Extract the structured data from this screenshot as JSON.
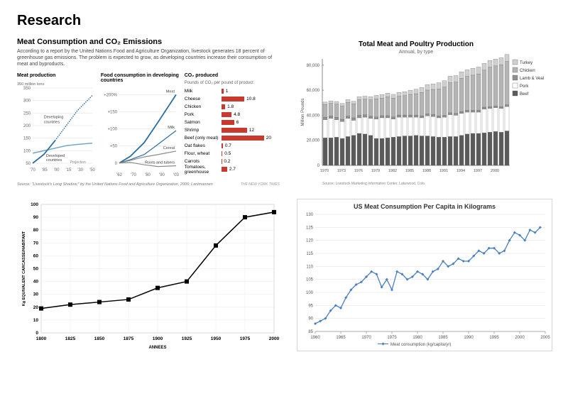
{
  "page_title": "Research",
  "nyt": {
    "title": "Meat Consumption and CO₂ Emissions",
    "sub": "According to a report by the United Nations Food and Agriculture Organization, livestock generates 18 percent of greenhouse gas emissions. The problem is expected to grow, as developing countries increase their consumption of meat and byproducts.",
    "source": "Source: \"Livestock's Long Shadow,\" by the United Nations Food and Agriculture Organization, 2006; Lantmannen",
    "brand": "THE NEW YORK TIMES",
    "col1": {
      "title": "Meat production",
      "ylabel": "350 million tons",
      "yticks": [
        50,
        100,
        150,
        200,
        250,
        300,
        350
      ],
      "xticks": [
        "'70",
        "'85",
        "'00",
        "'15",
        "'30",
        "'50"
      ],
      "series": {
        "developed": {
          "label": "Developed countries",
          "color": "#6fa7c9",
          "points": [
            [
              1970,
              90
            ],
            [
              1985,
              100
            ],
            [
              2000,
              110
            ],
            [
              2015,
              120
            ],
            [
              2030,
              125
            ],
            [
              2050,
              130
            ]
          ]
        },
        "developing": {
          "label": "Developing countries",
          "color": "#2b6ea3",
          "points": [
            [
              1970,
              50
            ],
            [
              1985,
              85
            ],
            [
              2000,
              140
            ],
            [
              2015,
              200
            ],
            [
              2030,
              260
            ],
            [
              2050,
              320
            ]
          ],
          "dotted_from": 2005
        }
      },
      "note": "Projection"
    },
    "col2": {
      "title": "Food consumption in developing countries",
      "yticks": [
        0,
        50,
        100,
        150,
        200
      ],
      "yprefix": "+",
      "ysuffix": "%",
      "xticks": [
        "'62",
        "'70",
        "'80",
        "'90",
        "'03"
      ],
      "series": {
        "meat": {
          "label": "Meat",
          "color": "#2b6ea3",
          "points": [
            [
              1962,
              0
            ],
            [
              1970,
              20
            ],
            [
              1980,
              60
            ],
            [
              1990,
              120
            ],
            [
              2003,
              200
            ]
          ]
        },
        "milk": {
          "label": "Milk",
          "color": "#2b6ea3",
          "points": [
            [
              1962,
              0
            ],
            [
              1970,
              10
            ],
            [
              1980,
              25
            ],
            [
              1990,
              55
            ],
            [
              2003,
              95
            ]
          ]
        },
        "cereal": {
          "label": "Cereal",
          "color": "#8a8a8a",
          "points": [
            [
              1962,
              0
            ],
            [
              1970,
              8
            ],
            [
              1980,
              18
            ],
            [
              1990,
              25
            ],
            [
              2003,
              35
            ]
          ]
        },
        "roots": {
          "label": "Roots and tubers",
          "color": "#8a8a8a",
          "points": [
            [
              1962,
              0
            ],
            [
              1970,
              2
            ],
            [
              1980,
              -5
            ],
            [
              1990,
              -10
            ],
            [
              2003,
              -8
            ]
          ]
        }
      }
    },
    "col3": {
      "title": "CO₂ produced",
      "sub": "Pounds of CO₂ per pound of product",
      "max": 20,
      "bar_color": "#c93a2e",
      "rows": [
        {
          "label": "Milk",
          "value": 1
        },
        {
          "label": "Cheese",
          "value": 10.8
        },
        {
          "label": "Chicken",
          "value": 1.8
        },
        {
          "label": "Pork",
          "value": 4.8
        },
        {
          "label": "Salmon",
          "value": 6
        },
        {
          "label": "Shrimp",
          "value": 12
        },
        {
          "label": "Beef (only meat)",
          "value": 20
        },
        {
          "label": "Oat flakes",
          "value": 0.7
        },
        {
          "label": "Flour, wheat",
          "value": 0.5
        },
        {
          "label": "Carrots",
          "value": 0.2
        },
        {
          "label": "Tomatoes, greenhouse",
          "value": 2.7
        }
      ]
    }
  },
  "stacked": {
    "title": "Total Meat and Poultry Production",
    "subtitle": "Annual, by type",
    "ylabel": "Million Pounds",
    "yticks": [
      0,
      20000,
      40000,
      60000,
      80000
    ],
    "xticks": [
      "1970",
      "1973",
      "1976",
      "1979",
      "1982",
      "1985",
      "1988",
      "1991",
      "1994",
      "1997",
      "2000"
    ],
    "source": "Source: Livestock Marketing Information Center, Lakewood, Colo.",
    "legend": [
      {
        "label": "Turkey",
        "color": "#d0d0d0"
      },
      {
        "label": "Chicken",
        "color": "#b4b4b4"
      },
      {
        "label": "Lamb & Veal",
        "color": "#909090"
      },
      {
        "label": "Pork",
        "color": "#ffffff",
        "stroke": "#666"
      },
      {
        "label": "Beef",
        "color": "#5a5a5a"
      }
    ],
    "years": [
      1970,
      1971,
      1972,
      1973,
      1974,
      1975,
      1976,
      1977,
      1978,
      1979,
      1980,
      1981,
      1982,
      1983,
      1984,
      1985,
      1986,
      1987,
      1988,
      1989,
      1990,
      1991,
      1992,
      1993,
      1994,
      1995,
      1996,
      1997,
      1998,
      1999,
      2000,
      2001,
      2002
    ],
    "stacks": {
      "beef": [
        22000,
        22000,
        22500,
        21500,
        23000,
        24000,
        25500,
        25000,
        24000,
        21500,
        21500,
        22000,
        22500,
        23000,
        23500,
        23500,
        24000,
        23500,
        23500,
        23000,
        22500,
        22500,
        23000,
        23000,
        24000,
        25000,
        25500,
        25500,
        26000,
        26500,
        27000,
        26500,
        27500
      ],
      "pork": [
        14500,
        15500,
        14000,
        13500,
        14500,
        12000,
        12500,
        13500,
        13500,
        15500,
        16500,
        16000,
        14500,
        15500,
        15000,
        15000,
        14500,
        14500,
        16000,
        16000,
        15500,
        16000,
        17500,
        17000,
        17500,
        17500,
        17000,
        17000,
        19000,
        19000,
        19000,
        19000,
        19500
      ],
      "lambveal": [
        2000,
        2000,
        1900,
        1800,
        1800,
        2000,
        2000,
        1900,
        1800,
        1700,
        1700,
        1700,
        1700,
        1700,
        1700,
        1700,
        1700,
        1600,
        1600,
        1600,
        1500,
        1500,
        1500,
        1500,
        1500,
        1500,
        1500,
        1500,
        1500,
        1400,
        1400,
        1400,
        1400
      ],
      "chicken": [
        10000,
        10000,
        10500,
        10500,
        11000,
        11000,
        12500,
        12500,
        13000,
        14500,
        14000,
        15000,
        15000,
        15000,
        15500,
        16500,
        17000,
        18500,
        19000,
        20000,
        21500,
        22500,
        24000,
        25000,
        26500,
        27000,
        28000,
        29000,
        29500,
        31500,
        32000,
        33500,
        34500
      ],
      "turkey": [
        2000,
        2000,
        2100,
        2100,
        2200,
        2200,
        2400,
        2400,
        2500,
        2700,
        2900,
        3000,
        3000,
        3100,
        3100,
        3300,
        3600,
        4100,
        4300,
        4500,
        5000,
        5100,
        5200,
        5200,
        5200,
        5300,
        5500,
        5500,
        5400,
        5400,
        5400,
        5500,
        5600
      ]
    }
  },
  "carcass": {
    "ylabel": "Kg EQUIVALENT CARCASSE/HABITANT",
    "xlabel": "ANNEES",
    "yticks": [
      0,
      10,
      20,
      30,
      40,
      50,
      60,
      70,
      80,
      90,
      100
    ],
    "xticks": [
      1800,
      1825,
      1850,
      1875,
      1900,
      1925,
      1950,
      1975,
      2000
    ],
    "points": [
      [
        1800,
        19
      ],
      [
        1825,
        22
      ],
      [
        1850,
        24
      ],
      [
        1875,
        26
      ],
      [
        1900,
        35
      ],
      [
        1925,
        40
      ],
      [
        1950,
        68
      ],
      [
        1975,
        90
      ],
      [
        2000,
        94
      ]
    ],
    "line_color": "#000",
    "marker": "square"
  },
  "percap": {
    "title": "US Meat Consumption Per Capita in Kilograms",
    "legend": "Meat consumption (kg/capita/yr)",
    "color": "#4a7fc4",
    "yticks": [
      85,
      90,
      95,
      100,
      105,
      110,
      115,
      120,
      125,
      130
    ],
    "xticks": [
      1960,
      1965,
      1970,
      1975,
      1980,
      1985,
      1990,
      1995,
      2000,
      2005
    ],
    "points": [
      [
        1960,
        88
      ],
      [
        1961,
        89
      ],
      [
        1962,
        90
      ],
      [
        1963,
        93
      ],
      [
        1964,
        95
      ],
      [
        1965,
        94
      ],
      [
        1966,
        98
      ],
      [
        1967,
        101
      ],
      [
        1968,
        103
      ],
      [
        1969,
        104
      ],
      [
        1970,
        106
      ],
      [
        1971,
        108
      ],
      [
        1972,
        107
      ],
      [
        1973,
        102
      ],
      [
        1974,
        105
      ],
      [
        1975,
        101
      ],
      [
        1976,
        108
      ],
      [
        1977,
        107
      ],
      [
        1978,
        105
      ],
      [
        1979,
        106
      ],
      [
        1980,
        108
      ],
      [
        1981,
        107
      ],
      [
        1982,
        105
      ],
      [
        1983,
        108
      ],
      [
        1984,
        109
      ],
      [
        1985,
        112
      ],
      [
        1986,
        110
      ],
      [
        1987,
        111
      ],
      [
        1988,
        113
      ],
      [
        1989,
        112
      ],
      [
        1990,
        112
      ],
      [
        1991,
        114
      ],
      [
        1992,
        116
      ],
      [
        1993,
        115
      ],
      [
        1994,
        117
      ],
      [
        1995,
        117
      ],
      [
        1996,
        115
      ],
      [
        1997,
        116
      ],
      [
        1998,
        120
      ],
      [
        1999,
        123
      ],
      [
        2000,
        122
      ],
      [
        2001,
        120
      ],
      [
        2002,
        124
      ],
      [
        2003,
        123
      ],
      [
        2004,
        125
      ]
    ]
  }
}
